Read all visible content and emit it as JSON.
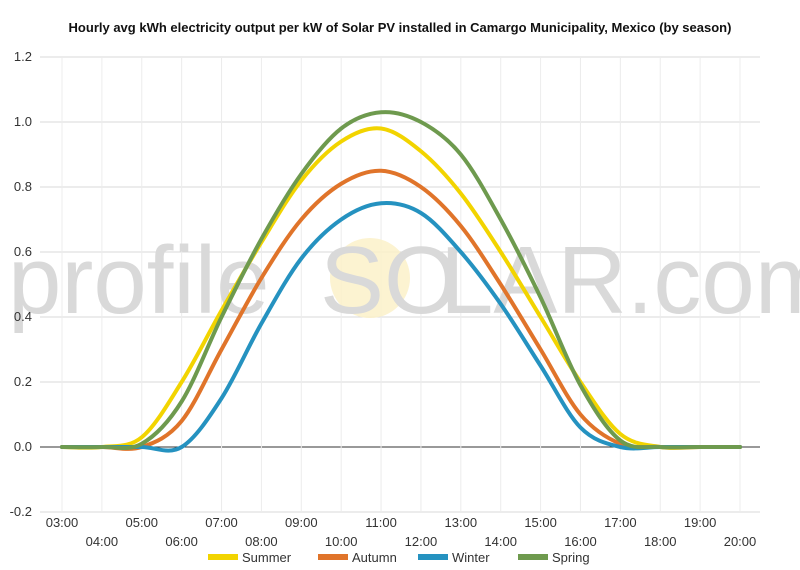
{
  "chart_data": {
    "type": "line",
    "title": "Hourly avg kWh electricity output per kW of Solar PV installed in Camargo Municipality, Mexico (by season)",
    "x": [
      "03:00",
      "04:00",
      "05:00",
      "06:00",
      "07:00",
      "08:00",
      "09:00",
      "10:00",
      "11:00",
      "12:00",
      "13:00",
      "14:00",
      "15:00",
      "16:00",
      "17:00",
      "18:00",
      "19:00",
      "20:00"
    ],
    "ylim": [
      -0.2,
      1.2
    ],
    "yticks": [
      "-0.2",
      "0.0",
      "0.2",
      "0.4",
      "0.6",
      "0.8",
      "1.0",
      "1.2"
    ],
    "grid": true,
    "legend_position": "bottom",
    "series": [
      {
        "name": "Summer",
        "color": "#f2d400",
        "values": [
          0,
          0,
          0.03,
          0.2,
          0.42,
          0.63,
          0.82,
          0.94,
          0.98,
          0.91,
          0.78,
          0.6,
          0.4,
          0.2,
          0.04,
          0,
          0,
          0
        ]
      },
      {
        "name": "Autumn",
        "color": "#e0742a",
        "values": [
          0,
          0,
          0,
          0.08,
          0.3,
          0.52,
          0.7,
          0.81,
          0.85,
          0.8,
          0.68,
          0.5,
          0.3,
          0.1,
          0.01,
          0,
          0,
          0
        ]
      },
      {
        "name": "Winter",
        "color": "#2592c0",
        "values": [
          0,
          0,
          0,
          0,
          0.15,
          0.38,
          0.58,
          0.7,
          0.75,
          0.72,
          0.6,
          0.44,
          0.25,
          0.06,
          0,
          0,
          0,
          0
        ]
      },
      {
        "name": "Spring",
        "color": "#6e9a4e",
        "values": [
          0,
          0,
          0.01,
          0.14,
          0.4,
          0.64,
          0.84,
          0.98,
          1.03,
          1.0,
          0.9,
          0.7,
          0.46,
          0.19,
          0.02,
          0,
          0,
          0
        ]
      }
    ]
  },
  "watermark": {
    "left": "profile",
    "sun": "SO",
    "right": "LAR.com"
  }
}
